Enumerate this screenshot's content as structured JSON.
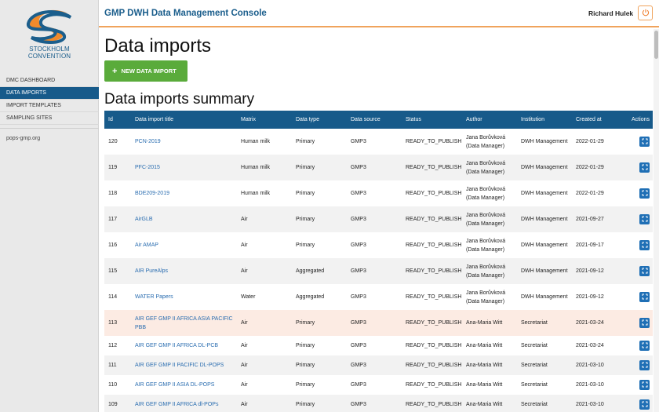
{
  "logo": {
    "line1": "STOCKHOLM",
    "line2": "CONVENTION",
    "icon": "stockholm-convention-logo"
  },
  "sidebar": {
    "items": [
      {
        "label": "DMC DASHBOARD",
        "active": false
      },
      {
        "label": "DATA IMPORTS",
        "active": true
      },
      {
        "label": "IMPORT TEMPLATES",
        "active": false
      },
      {
        "label": "SAMPLING SITES",
        "active": false
      }
    ],
    "link": "pops-gmp.org"
  },
  "header": {
    "title": "GMP DWH Data Management Console",
    "user": "Richard Hulek",
    "power_icon": "power-icon"
  },
  "main": {
    "page_title": "Data imports",
    "new_button": "NEW DATA IMPORT",
    "summary_title": "Data imports summary"
  },
  "table": {
    "columns": [
      "Id",
      "Data import title",
      "Matrix",
      "Data type",
      "Data source",
      "Status",
      "Author",
      "Institution",
      "Created at",
      "Actions"
    ],
    "rows": [
      {
        "id": "120",
        "title": [
          "PCN-2019"
        ],
        "matrix": "Human milk",
        "type": "Primary",
        "source": "GMP3",
        "status": "READY_TO_PUBLISH",
        "author": [
          "Jana Borůvková",
          "(Data Manager)"
        ],
        "institution": "DWH Management",
        "created": "2022-01-29"
      },
      {
        "id": "119",
        "title": [
          "PFC-2015"
        ],
        "matrix": "Human milk",
        "type": "Primary",
        "source": "GMP3",
        "status": "READY_TO_PUBLISH",
        "author": [
          "Jana Borůvková",
          "(Data Manager)"
        ],
        "institution": "DWH Management",
        "created": "2022-01-29"
      },
      {
        "id": "118",
        "title": [
          "BDE209-2019"
        ],
        "matrix": "Human milk",
        "type": "Primary",
        "source": "GMP3",
        "status": "READY_TO_PUBLISH",
        "author": [
          "Jana Borůvková",
          "(Data Manager)"
        ],
        "institution": "DWH Management",
        "created": "2022-01-29"
      },
      {
        "id": "117",
        "title": [
          "AirGLB"
        ],
        "matrix": "Air",
        "type": "Primary",
        "source": "GMP3",
        "status": "READY_TO_PUBLISH",
        "author": [
          "Jana Borůvková",
          "(Data Manager)"
        ],
        "institution": "DWH Management",
        "created": "2021-09-27"
      },
      {
        "id": "116",
        "title": [
          "Air AMAP"
        ],
        "matrix": "Air",
        "type": "Primary",
        "source": "GMP3",
        "status": "READY_TO_PUBLISH",
        "author": [
          "Jana Borůvková",
          "(Data Manager)"
        ],
        "institution": "DWH Management",
        "created": "2021-09-17"
      },
      {
        "id": "115",
        "title": [
          "AIR PureAlps"
        ],
        "matrix": "Air",
        "type": "Aggregated",
        "source": "GMP3",
        "status": "READY_TO_PUBLISH",
        "author": [
          "Jana Borůvková",
          "(Data Manager)"
        ],
        "institution": "DWH Management",
        "created": "2021-09-12"
      },
      {
        "id": "114",
        "title": [
          "WATER Papers"
        ],
        "matrix": "Water",
        "type": "Aggregated",
        "source": "GMP3",
        "status": "READY_TO_PUBLISH",
        "author": [
          "Jana Borůvková",
          "(Data Manager)"
        ],
        "institution": "DWH Management",
        "created": "2021-09-12"
      },
      {
        "id": "113",
        "title": [
          "AIR GEF GMP II AFRICA ASIA PACIFIC",
          "PBB"
        ],
        "matrix": "Air",
        "type": "Primary",
        "source": "GMP3",
        "status": "READY_TO_PUBLISH",
        "author": [
          "Ana-Maria Witt"
        ],
        "institution": "Secretariat",
        "created": "2021-03-24",
        "highlight": true
      },
      {
        "id": "112",
        "title": [
          "AIR GEF GMP II AFRICA DL-PCB"
        ],
        "matrix": "Air",
        "type": "Primary",
        "source": "GMP3",
        "status": "READY_TO_PUBLISH",
        "author": [
          "Ana-Maria Witt"
        ],
        "institution": "Secretariat",
        "created": "2021-03-24"
      },
      {
        "id": "111",
        "title": [
          "AIR GEF GMP II PACIFIC DL-POPS"
        ],
        "matrix": "Air",
        "type": "Primary",
        "source": "GMP3",
        "status": "READY_TO_PUBLISH",
        "author": [
          "Ana-Maria Witt"
        ],
        "institution": "Secretariat",
        "created": "2021-03-10"
      },
      {
        "id": "110",
        "title": [
          "AIR GEF GMP II ASIA DL-POPS"
        ],
        "matrix": "Air",
        "type": "Primary",
        "source": "GMP3",
        "status": "READY_TO_PUBLISH",
        "author": [
          "Ana-Maria Witt"
        ],
        "institution": "Secretariat",
        "created": "2021-03-10"
      },
      {
        "id": "109",
        "title": [
          "AIR GEF GMP II AFRICA dl-POPs"
        ],
        "matrix": "Air",
        "type": "Primary",
        "source": "GMP3",
        "status": "READY_TO_PUBLISH",
        "author": [
          "Ana-Maria Witt"
        ],
        "institution": "Secretariat",
        "created": "2021-03-10"
      }
    ]
  },
  "colors": {
    "brand_blue": "#175a8a",
    "accent_orange": "#f0a35c",
    "button_green": "#5aab3b",
    "link_blue": "#2a6db0",
    "highlight_row": "#fcebe3"
  }
}
